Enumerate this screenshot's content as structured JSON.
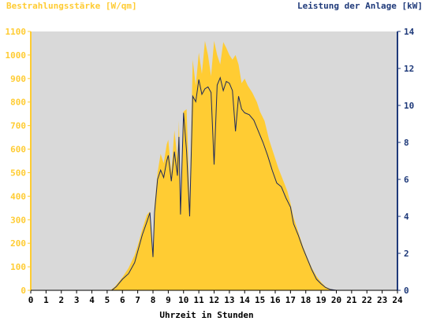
{
  "chart_data": {
    "type": "area",
    "title_left": "Bestrahlungsstärke [W/qm]",
    "title_right": "Leistung der Anlage [kW]",
    "xlabel": "Uhrzeit in Stunden",
    "xlim": [
      0,
      24
    ],
    "ylim_left": [
      0,
      1100
    ],
    "ylim_right": [
      0,
      14
    ],
    "x_ticks": [
      "0",
      "1",
      "2",
      "3",
      "4",
      "5",
      "6",
      "7",
      "8",
      "9",
      "10",
      "11",
      "12",
      "13",
      "14",
      "15",
      "16",
      "17",
      "18",
      "19",
      "20",
      "21",
      "22",
      "23",
      "24"
    ],
    "y_left_ticks": [
      "0",
      "100",
      "200",
      "300",
      "400",
      "500",
      "600",
      "700",
      "800",
      "900",
      "1000",
      "1100"
    ],
    "y_right_ticks": [
      "0",
      "2",
      "4",
      "6",
      "8",
      "10",
      "12",
      "14"
    ],
    "grid": false,
    "colors": {
      "plot_bg": "#d9d9d9",
      "irradiance": "#ffcc33",
      "power_line": "#1f2a5a",
      "left_axis_text": "#ffcc33",
      "right_axis_text": "#1f3a7a"
    },
    "series": [
      {
        "axis": "left",
        "style": "area",
        "points": [
          [
            0,
            0
          ],
          [
            5.2,
            0
          ],
          [
            5.5,
            15
          ],
          [
            6.0,
            55
          ],
          [
            6.4,
            95
          ],
          [
            6.8,
            150
          ],
          [
            7.0,
            190
          ],
          [
            7.3,
            260
          ],
          [
            7.6,
            320
          ],
          [
            7.8,
            335
          ],
          [
            8.0,
            150
          ],
          [
            8.1,
            360
          ],
          [
            8.3,
            500
          ],
          [
            8.5,
            580
          ],
          [
            8.7,
            540
          ],
          [
            8.9,
            620
          ],
          [
            9.0,
            640
          ],
          [
            9.2,
            500
          ],
          [
            9.4,
            680
          ],
          [
            9.6,
            560
          ],
          [
            9.7,
            720
          ],
          [
            9.8,
            330
          ],
          [
            10.0,
            760
          ],
          [
            10.2,
            770
          ],
          [
            10.4,
            370
          ],
          [
            10.6,
            980
          ],
          [
            10.8,
            870
          ],
          [
            11.0,
            1010
          ],
          [
            11.2,
            920
          ],
          [
            11.4,
            1060
          ],
          [
            11.6,
            1000
          ],
          [
            11.8,
            910
          ],
          [
            12.0,
            1060
          ],
          [
            12.2,
            1000
          ],
          [
            12.4,
            960
          ],
          [
            12.6,
            1055
          ],
          [
            12.8,
            1030
          ],
          [
            13.0,
            1000
          ],
          [
            13.2,
            980
          ],
          [
            13.4,
            1000
          ],
          [
            13.6,
            960
          ],
          [
            13.8,
            880
          ],
          [
            14.0,
            900
          ],
          [
            14.2,
            870
          ],
          [
            14.5,
            840
          ],
          [
            14.8,
            800
          ],
          [
            15.0,
            760
          ],
          [
            15.3,
            720
          ],
          [
            15.6,
            640
          ],
          [
            15.9,
            580
          ],
          [
            16.2,
            520
          ],
          [
            16.5,
            470
          ],
          [
            16.8,
            420
          ],
          [
            17.0,
            370
          ],
          [
            17.2,
            310
          ],
          [
            17.5,
            250
          ],
          [
            17.8,
            190
          ],
          [
            18.1,
            140
          ],
          [
            18.4,
            95
          ],
          [
            18.7,
            60
          ],
          [
            19.0,
            35
          ],
          [
            19.3,
            15
          ],
          [
            19.6,
            6
          ],
          [
            20.0,
            0
          ],
          [
            24,
            0
          ]
        ]
      },
      {
        "axis": "right",
        "style": "line",
        "points": [
          [
            0,
            0
          ],
          [
            5.3,
            0
          ],
          [
            5.6,
            0.2
          ],
          [
            6.0,
            0.6
          ],
          [
            6.4,
            0.9
          ],
          [
            6.8,
            1.5
          ],
          [
            7.0,
            2.1
          ],
          [
            7.3,
            3.0
          ],
          [
            7.6,
            3.7
          ],
          [
            7.8,
            4.2
          ],
          [
            8.0,
            1.8
          ],
          [
            8.1,
            4.2
          ],
          [
            8.3,
            6.0
          ],
          [
            8.5,
            6.5
          ],
          [
            8.7,
            6.1
          ],
          [
            8.9,
            7.0
          ],
          [
            9.0,
            7.3
          ],
          [
            9.2,
            5.9
          ],
          [
            9.4,
            7.5
          ],
          [
            9.6,
            6.2
          ],
          [
            9.7,
            8.3
          ],
          [
            9.8,
            4.1
          ],
          [
            10.0,
            9.6
          ],
          [
            10.2,
            7.5
          ],
          [
            10.4,
            4.0
          ],
          [
            10.6,
            10.5
          ],
          [
            10.8,
            10.2
          ],
          [
            11.0,
            11.4
          ],
          [
            11.2,
            10.6
          ],
          [
            11.4,
            10.9
          ],
          [
            11.6,
            11.0
          ],
          [
            11.8,
            10.7
          ],
          [
            12.0,
            6.8
          ],
          [
            12.2,
            11.1
          ],
          [
            12.4,
            11.5
          ],
          [
            12.6,
            10.8
          ],
          [
            12.8,
            11.3
          ],
          [
            13.0,
            11.2
          ],
          [
            13.2,
            10.8
          ],
          [
            13.4,
            8.6
          ],
          [
            13.6,
            10.5
          ],
          [
            13.8,
            9.8
          ],
          [
            14.0,
            9.6
          ],
          [
            14.3,
            9.5
          ],
          [
            14.6,
            9.2
          ],
          [
            14.9,
            8.6
          ],
          [
            15.2,
            8.0
          ],
          [
            15.5,
            7.3
          ],
          [
            15.8,
            6.5
          ],
          [
            16.1,
            5.8
          ],
          [
            16.4,
            5.6
          ],
          [
            16.7,
            5.0
          ],
          [
            17.0,
            4.5
          ],
          [
            17.2,
            3.6
          ],
          [
            17.5,
            3.0
          ],
          [
            17.8,
            2.3
          ],
          [
            18.1,
            1.7
          ],
          [
            18.4,
            1.1
          ],
          [
            18.7,
            0.6
          ],
          [
            19.0,
            0.35
          ],
          [
            19.3,
            0.15
          ],
          [
            19.6,
            0.05
          ],
          [
            20.0,
            0
          ],
          [
            24,
            0
          ]
        ]
      }
    ]
  }
}
